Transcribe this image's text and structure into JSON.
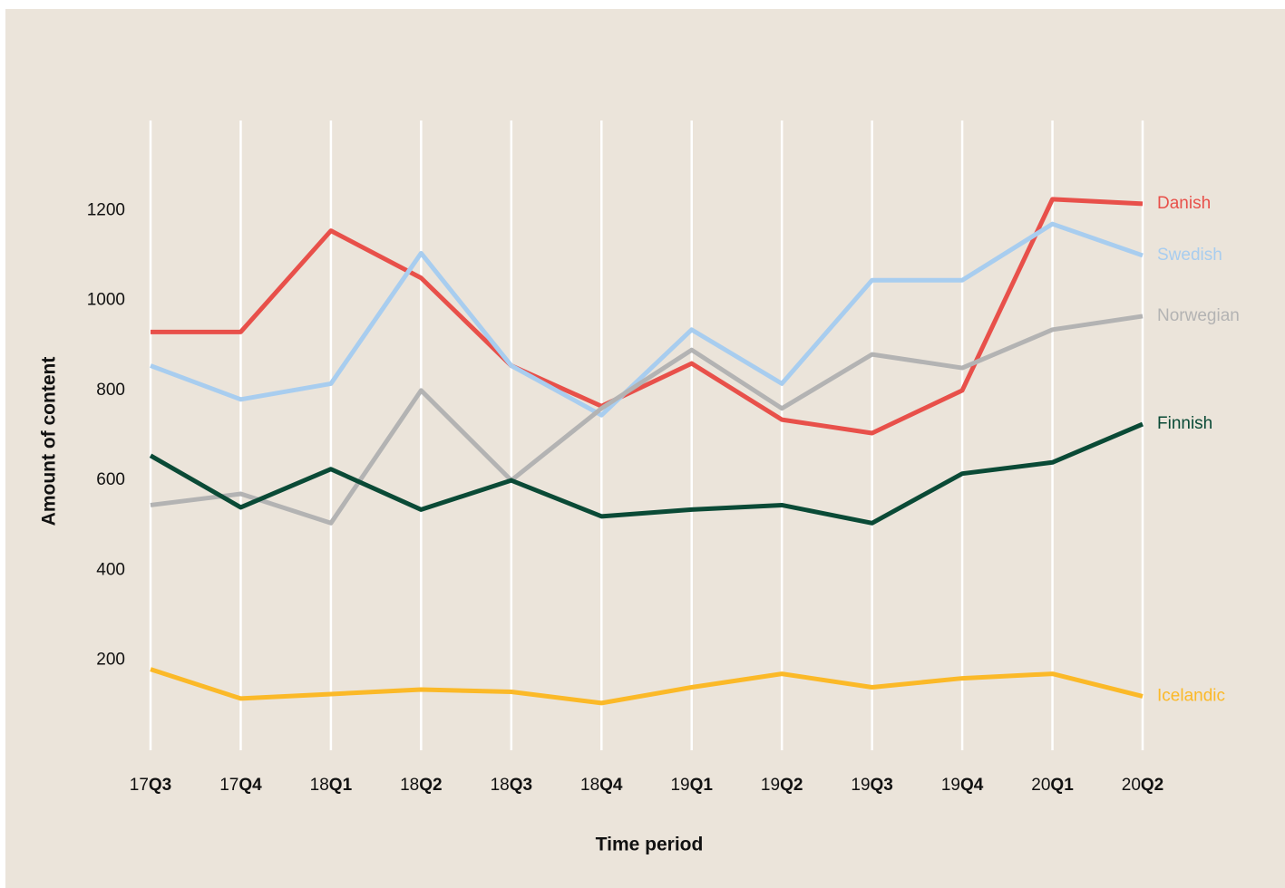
{
  "chart_data": {
    "type": "line",
    "x_label": "Time period",
    "y_label": "Amount of content",
    "categories": [
      "17Q3",
      "17Q4",
      "18Q1",
      "18Q2",
      "18Q3",
      "18Q4",
      "19Q1",
      "19Q2",
      "19Q3",
      "19Q4",
      "20Q1",
      "20Q2"
    ],
    "series": [
      {
        "name": "Danish",
        "color": "#e8504a",
        "values": [
          930,
          930,
          1155,
          1050,
          855,
          765,
          860,
          735,
          705,
          800,
          1225,
          1215
        ]
      },
      {
        "name": "Swedish",
        "color": "#a8cdef",
        "values": [
          855,
          780,
          815,
          1105,
          855,
          745,
          935,
          815,
          1045,
          1045,
          1170,
          1100
        ]
      },
      {
        "name": "Norwegian",
        "color": "#b3b3b3",
        "values": [
          545,
          570,
          505,
          800,
          600,
          760,
          890,
          760,
          880,
          850,
          935,
          965
        ]
      },
      {
        "name": "Finnish",
        "color": "#0a4a36",
        "values": [
          655,
          540,
          625,
          535,
          600,
          520,
          535,
          545,
          505,
          615,
          640,
          725
        ]
      },
      {
        "name": "Icelandic",
        "color": "#fbb928",
        "values": [
          180,
          115,
          125,
          135,
          130,
          105,
          140,
          170,
          140,
          160,
          170,
          120
        ]
      }
    ],
    "ylim": [
      0,
      1400
    ],
    "yticks": [
      200,
      400,
      600,
      800,
      1000,
      1200
    ],
    "grid": true
  }
}
